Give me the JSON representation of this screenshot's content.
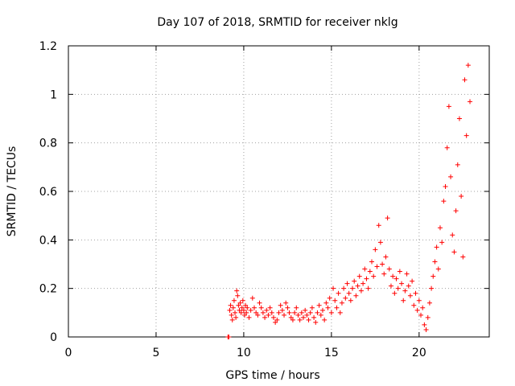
{
  "chart_data": {
    "type": "scatter",
    "title": "Day 107 of 2018, SRMTID for receiver nklg",
    "xlabel": "GPS time / hours",
    "ylabel": "SRMTID / TECUs",
    "xlim": [
      0,
      24
    ],
    "ylim": [
      0,
      1.2
    ],
    "x_ticks": [
      0,
      5,
      10,
      15,
      20
    ],
    "x_tick_labels": [
      "0",
      "5",
      "10",
      "15",
      "20"
    ],
    "y_ticks": [
      0,
      0.2,
      0.4,
      0.6,
      0.8,
      1.0,
      1.2
    ],
    "y_tick_labels": [
      "0",
      "0.2",
      "0.4",
      "0.6",
      "0.8",
      "1",
      "1.2"
    ],
    "grid": true,
    "marker": "plus",
    "color": "#ff0000",
    "series": [
      {
        "name": "SRMTID",
        "points": [
          [
            9.1,
            0.0
          ],
          [
            9.15,
            0.0
          ],
          [
            9.2,
            0.11
          ],
          [
            9.25,
            0.13
          ],
          [
            9.3,
            0.09
          ],
          [
            9.35,
            0.07
          ],
          [
            9.4,
            0.12
          ],
          [
            9.45,
            0.15
          ],
          [
            9.5,
            0.1
          ],
          [
            9.55,
            0.08
          ],
          [
            9.6,
            0.19
          ],
          [
            9.65,
            0.17
          ],
          [
            9.7,
            0.13
          ],
          [
            9.75,
            0.11
          ],
          [
            9.8,
            0.14
          ],
          [
            9.85,
            0.1
          ],
          [
            9.9,
            0.12
          ],
          [
            9.95,
            0.15
          ],
          [
            10.0,
            0.11
          ],
          [
            10.05,
            0.09
          ],
          [
            10.1,
            0.13
          ],
          [
            10.15,
            0.1
          ],
          [
            10.2,
            0.12
          ],
          [
            10.3,
            0.08
          ],
          [
            10.4,
            0.11
          ],
          [
            10.5,
            0.16
          ],
          [
            10.6,
            0.12
          ],
          [
            10.7,
            0.1
          ],
          [
            10.8,
            0.09
          ],
          [
            10.9,
            0.14
          ],
          [
            11.0,
            0.12
          ],
          [
            11.1,
            0.1
          ],
          [
            11.2,
            0.08
          ],
          [
            11.3,
            0.11
          ],
          [
            11.4,
            0.09
          ],
          [
            11.5,
            0.12
          ],
          [
            11.6,
            0.1
          ],
          [
            11.7,
            0.08
          ],
          [
            11.8,
            0.06
          ],
          [
            11.9,
            0.07
          ],
          [
            12.0,
            0.1
          ],
          [
            12.1,
            0.13
          ],
          [
            12.2,
            0.11
          ],
          [
            12.3,
            0.09
          ],
          [
            12.4,
            0.14
          ],
          [
            12.5,
            0.12
          ],
          [
            12.6,
            0.1
          ],
          [
            12.7,
            0.08
          ],
          [
            12.8,
            0.07
          ],
          [
            12.9,
            0.1
          ],
          [
            13.0,
            0.12
          ],
          [
            13.1,
            0.09
          ],
          [
            13.2,
            0.07
          ],
          [
            13.3,
            0.1
          ],
          [
            13.4,
            0.08
          ],
          [
            13.5,
            0.11
          ],
          [
            13.6,
            0.09
          ],
          [
            13.7,
            0.07
          ],
          [
            13.8,
            0.1
          ],
          [
            13.9,
            0.12
          ],
          [
            14.0,
            0.08
          ],
          [
            14.1,
            0.06
          ],
          [
            14.2,
            0.1
          ],
          [
            14.3,
            0.13
          ],
          [
            14.4,
            0.09
          ],
          [
            14.5,
            0.11
          ],
          [
            14.6,
            0.07
          ],
          [
            14.7,
            0.14
          ],
          [
            14.8,
            0.12
          ],
          [
            14.9,
            0.16
          ],
          [
            15.0,
            0.1
          ],
          [
            15.1,
            0.2
          ],
          [
            15.2,
            0.15
          ],
          [
            15.3,
            0.12
          ],
          [
            15.4,
            0.18
          ],
          [
            15.5,
            0.1
          ],
          [
            15.6,
            0.14
          ],
          [
            15.7,
            0.2
          ],
          [
            15.8,
            0.16
          ],
          [
            15.9,
            0.22
          ],
          [
            16.0,
            0.18
          ],
          [
            16.1,
            0.15
          ],
          [
            16.2,
            0.2
          ],
          [
            16.3,
            0.23
          ],
          [
            16.4,
            0.17
          ],
          [
            16.5,
            0.21
          ],
          [
            16.6,
            0.25
          ],
          [
            16.7,
            0.19
          ],
          [
            16.8,
            0.22
          ],
          [
            16.9,
            0.28
          ],
          [
            17.0,
            0.24
          ],
          [
            17.1,
            0.2
          ],
          [
            17.2,
            0.27
          ],
          [
            17.3,
            0.31
          ],
          [
            17.4,
            0.25
          ],
          [
            17.5,
            0.36
          ],
          [
            17.6,
            0.29
          ],
          [
            17.7,
            0.46
          ],
          [
            17.8,
            0.39
          ],
          [
            17.9,
            0.3
          ],
          [
            18.0,
            0.26
          ],
          [
            18.1,
            0.33
          ],
          [
            18.2,
            0.49
          ],
          [
            18.3,
            0.28
          ],
          [
            18.4,
            0.21
          ],
          [
            18.5,
            0.25
          ],
          [
            18.6,
            0.18
          ],
          [
            18.7,
            0.24
          ],
          [
            18.8,
            0.2
          ],
          [
            18.9,
            0.27
          ],
          [
            19.0,
            0.22
          ],
          [
            19.1,
            0.15
          ],
          [
            19.2,
            0.19
          ],
          [
            19.3,
            0.26
          ],
          [
            19.4,
            0.21
          ],
          [
            19.5,
            0.17
          ],
          [
            19.6,
            0.23
          ],
          [
            19.7,
            0.13
          ],
          [
            19.8,
            0.18
          ],
          [
            19.9,
            0.11
          ],
          [
            20.0,
            0.15
          ],
          [
            20.1,
            0.09
          ],
          [
            20.2,
            0.12
          ],
          [
            20.3,
            0.05
          ],
          [
            20.4,
            0.03
          ],
          [
            20.5,
            0.08
          ],
          [
            20.6,
            0.14
          ],
          [
            20.7,
            0.2
          ],
          [
            20.8,
            0.25
          ],
          [
            20.9,
            0.31
          ],
          [
            21.0,
            0.37
          ],
          [
            21.1,
            0.28
          ],
          [
            21.2,
            0.45
          ],
          [
            21.3,
            0.39
          ],
          [
            21.4,
            0.56
          ],
          [
            21.5,
            0.62
          ],
          [
            21.6,
            0.78
          ],
          [
            21.7,
            0.95
          ],
          [
            21.8,
            0.66
          ],
          [
            21.9,
            0.42
          ],
          [
            22.0,
            0.35
          ],
          [
            22.1,
            0.52
          ],
          [
            22.2,
            0.71
          ],
          [
            22.3,
            0.9
          ],
          [
            22.4,
            0.58
          ],
          [
            22.5,
            0.33
          ],
          [
            22.6,
            1.06
          ],
          [
            22.7,
            0.83
          ],
          [
            22.8,
            1.12
          ],
          [
            22.9,
            0.97
          ]
        ]
      }
    ]
  }
}
